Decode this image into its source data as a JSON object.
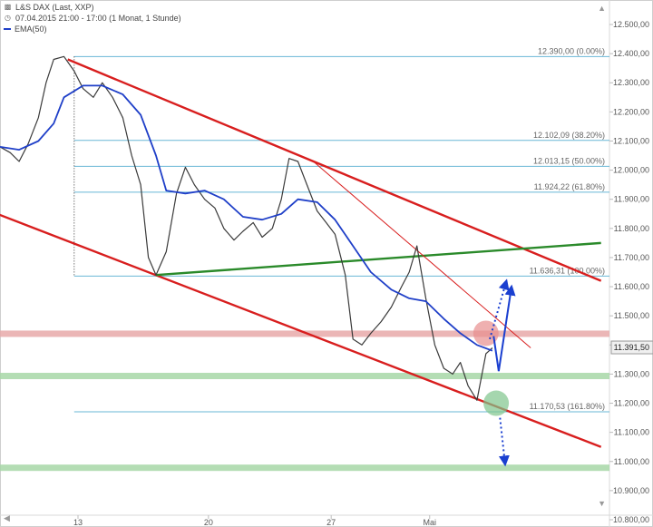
{
  "header": {
    "symbol": "L&S DAX (Last, XXP)",
    "range": "07.04.2015 21:00 - 17:00 (1 Monat, 1 Stunde)",
    "indicator": "EMA(50)"
  },
  "colors": {
    "price": "#3a3a3a",
    "ema": "#1f3fc8",
    "channel": "#d81e1e",
    "support_green": "#2a8a2a",
    "fib": "#69b7d6",
    "band_red": "#e8a9a9",
    "band_green": "#a7d7a7",
    "arrow": "#1a3fd0"
  },
  "chart_data": {
    "type": "line",
    "title": "L&S DAX (Last, XXP)",
    "timeframe": "1 Stunde",
    "y_axis": {
      "ylim": [
        10800,
        12500
      ],
      "ticks": [
        "12.500,00",
        "12.400,00",
        "12.300,00",
        "12.200,00",
        "12.100,00",
        "12.000,00",
        "11.900,00",
        "11.800,00",
        "11.700,00",
        "11.600,00",
        "11.500,00",
        "11.400,00",
        "11.300,00",
        "11.200,00",
        "11.100,00",
        "11.000,00",
        "10.900,00",
        "10.800,00"
      ],
      "position": "right"
    },
    "x_axis": {
      "ticks": [
        "13",
        "20",
        "27",
        "Mai"
      ]
    },
    "last_price": {
      "value": 11391.5,
      "label": "11.391,50"
    },
    "fibonacci": [
      {
        "value": 12390.0,
        "label": "12.390,00 (0.00%)"
      },
      {
        "value": 12102.09,
        "label": "12.102,09 (38.20%)"
      },
      {
        "value": 12013.15,
        "label": "12.013,15 (50.00%)"
      },
      {
        "value": 11924.22,
        "label": "11.924,22 (61.80%)"
      },
      {
        "value": 11636.31,
        "label": "11.636,31 (100.00%)"
      },
      {
        "value": 11170.53,
        "label": "11.170,53 (161.80%)"
      }
    ],
    "horizontal_bands": [
      {
        "value": 11440,
        "color": "red"
      },
      {
        "value": 11295,
        "color": "green"
      },
      {
        "value": 10980,
        "color": "green"
      }
    ],
    "series": [
      {
        "name": "L&S DAX (Last, XXP)",
        "style": "price",
        "values": [
          {
            "x": 0.0,
            "y": 12080
          },
          {
            "x": 0.8,
            "y": 12060
          },
          {
            "x": 1.5,
            "y": 12030
          },
          {
            "x": 2.2,
            "y": 12090
          },
          {
            "x": 3.0,
            "y": 12180
          },
          {
            "x": 3.6,
            "y": 12300
          },
          {
            "x": 4.2,
            "y": 12380
          },
          {
            "x": 5.0,
            "y": 12390
          },
          {
            "x": 5.8,
            "y": 12340
          },
          {
            "x": 6.5,
            "y": 12280
          },
          {
            "x": 7.3,
            "y": 12250
          },
          {
            "x": 8.0,
            "y": 12300
          },
          {
            "x": 8.8,
            "y": 12250
          },
          {
            "x": 9.6,
            "y": 12180
          },
          {
            "x": 10.3,
            "y": 12050
          },
          {
            "x": 11.0,
            "y": 11950
          },
          {
            "x": 11.6,
            "y": 11700
          },
          {
            "x": 12.2,
            "y": 11640
          },
          {
            "x": 13.0,
            "y": 11720
          },
          {
            "x": 13.8,
            "y": 11920
          },
          {
            "x": 14.5,
            "y": 12010
          },
          {
            "x": 15.2,
            "y": 11950
          },
          {
            "x": 16.0,
            "y": 11900
          },
          {
            "x": 16.8,
            "y": 11870
          },
          {
            "x": 17.5,
            "y": 11800
          },
          {
            "x": 18.3,
            "y": 11760
          },
          {
            "x": 19.0,
            "y": 11790
          },
          {
            "x": 19.8,
            "y": 11820
          },
          {
            "x": 20.5,
            "y": 11770
          },
          {
            "x": 21.3,
            "y": 11800
          },
          {
            "x": 22.0,
            "y": 11900
          },
          {
            "x": 22.6,
            "y": 12040
          },
          {
            "x": 23.3,
            "y": 12030
          },
          {
            "x": 24.0,
            "y": 11950
          },
          {
            "x": 24.8,
            "y": 11860
          },
          {
            "x": 25.5,
            "y": 11820
          },
          {
            "x": 26.2,
            "y": 11780
          },
          {
            "x": 27.0,
            "y": 11640
          },
          {
            "x": 27.6,
            "y": 11420
          },
          {
            "x": 28.3,
            "y": 11400
          },
          {
            "x": 29.0,
            "y": 11440
          },
          {
            "x": 29.8,
            "y": 11480
          },
          {
            "x": 30.6,
            "y": 11530
          },
          {
            "x": 31.4,
            "y": 11600
          },
          {
            "x": 32.0,
            "y": 11650
          },
          {
            "x": 32.6,
            "y": 11740
          },
          {
            "x": 33.3,
            "y": 11560
          },
          {
            "x": 34.0,
            "y": 11400
          },
          {
            "x": 34.7,
            "y": 11320
          },
          {
            "x": 35.4,
            "y": 11300
          },
          {
            "x": 36.0,
            "y": 11340
          },
          {
            "x": 36.6,
            "y": 11260
          },
          {
            "x": 37.3,
            "y": 11210
          },
          {
            "x": 38.0,
            "y": 11370
          },
          {
            "x": 38.5,
            "y": 11390
          }
        ]
      },
      {
        "name": "EMA(50)",
        "style": "ema",
        "values": [
          {
            "x": 0.0,
            "y": 12080
          },
          {
            "x": 1.5,
            "y": 12070
          },
          {
            "x": 3.0,
            "y": 12100
          },
          {
            "x": 4.2,
            "y": 12160
          },
          {
            "x": 5.0,
            "y": 12250
          },
          {
            "x": 6.5,
            "y": 12290
          },
          {
            "x": 8.0,
            "y": 12290
          },
          {
            "x": 9.6,
            "y": 12260
          },
          {
            "x": 11.0,
            "y": 12190
          },
          {
            "x": 12.2,
            "y": 12050
          },
          {
            "x": 13.0,
            "y": 11930
          },
          {
            "x": 14.5,
            "y": 11920
          },
          {
            "x": 16.0,
            "y": 11930
          },
          {
            "x": 17.5,
            "y": 11900
          },
          {
            "x": 19.0,
            "y": 11840
          },
          {
            "x": 20.5,
            "y": 11830
          },
          {
            "x": 22.0,
            "y": 11850
          },
          {
            "x": 23.3,
            "y": 11900
          },
          {
            "x": 24.8,
            "y": 11890
          },
          {
            "x": 26.2,
            "y": 11830
          },
          {
            "x": 27.6,
            "y": 11740
          },
          {
            "x": 29.0,
            "y": 11650
          },
          {
            "x": 30.6,
            "y": 11590
          },
          {
            "x": 32.0,
            "y": 11560
          },
          {
            "x": 33.3,
            "y": 11550
          },
          {
            "x": 34.7,
            "y": 11490
          },
          {
            "x": 36.0,
            "y": 11440
          },
          {
            "x": 37.3,
            "y": 11400
          },
          {
            "x": 38.5,
            "y": 11380
          }
        ]
      }
    ],
    "trend_lines": [
      {
        "role": "channel-upper",
        "color": "red",
        "from": {
          "x": 5.3,
          "y": 12380
        },
        "to": {
          "x": 47.0,
          "y": 11620
        }
      },
      {
        "role": "channel-lower",
        "color": "red",
        "from": {
          "x": -2.0,
          "y": 11880
        },
        "to": {
          "x": 47.0,
          "y": 11050
        }
      },
      {
        "role": "support",
        "color": "green",
        "from": {
          "x": 12.2,
          "y": 11640
        },
        "to": {
          "x": 47.0,
          "y": 11750
        }
      },
      {
        "role": "thin-downtrend",
        "color": "red",
        "from": {
          "x": 24.5,
          "y": 12030
        },
        "to": {
          "x": 41.5,
          "y": 11390
        }
      }
    ],
    "markers": [
      {
        "kind": "circle",
        "color": "red",
        "at": {
          "x": 38.0,
          "y": 11440
        }
      },
      {
        "kind": "circle",
        "color": "green",
        "at": {
          "x": 38.8,
          "y": 11200
        }
      }
    ],
    "scenario_arrows": [
      {
        "style": "dotted",
        "from": {
          "x": 38.3,
          "y": 11420
        },
        "to": {
          "x": 39.6,
          "y": 11620
        }
      },
      {
        "style": "solid",
        "from": {
          "x": 38.6,
          "y": 11430
        },
        "to": {
          "x": 39.0,
          "y": 11310
        }
      },
      {
        "style": "solid",
        "from": {
          "x": 39.0,
          "y": 11310
        },
        "to": {
          "x": 40.0,
          "y": 11600
        }
      },
      {
        "style": "dotted",
        "from": {
          "x": 39.1,
          "y": 11150
        },
        "to": {
          "x": 39.5,
          "y": 10990
        }
      }
    ]
  }
}
